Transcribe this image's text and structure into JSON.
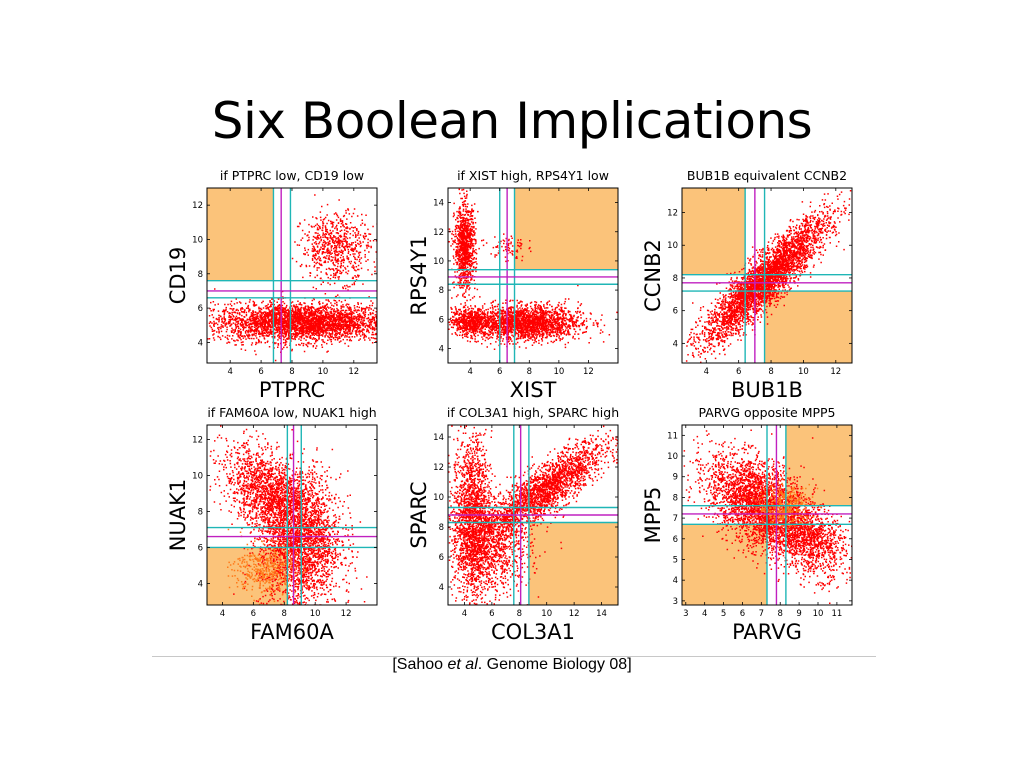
{
  "slide": {
    "title": "Six Boolean Implications",
    "citation": {
      "prefix": "[Sahoo ",
      "italic": "et al",
      "suffix": ".  Genome Biology 08]"
    }
  },
  "colors": {
    "points": "#ff0000",
    "points_dim": "#ff7a1a",
    "quadrant": "#fbc37a",
    "threshold_cyan": "#1fb6b6",
    "threshold_magenta": "#c020c0"
  },
  "chart_data": [
    {
      "type": "scatter",
      "title": "if PTPRC low, CD19 low",
      "xlabel": "PTPRC",
      "ylabel": "CD19",
      "xlim": [
        2.5,
        13.5
      ],
      "ylim": [
        2.8,
        13.0
      ],
      "xticks": [
        4,
        6,
        8,
        10,
        12
      ],
      "yticks": [
        4,
        6,
        8,
        10,
        12
      ],
      "vthresholds": [
        6.8,
        7.3,
        7.9
      ],
      "hthresholds": [
        6.6,
        7.0,
        7.6
      ],
      "highlight_quadrants": [
        {
          "x": [
            2.5,
            6.8
          ],
          "y": [
            7.6,
            13.0
          ]
        }
      ],
      "clusters": [
        {
          "center": [
            8.5,
            5.2
          ],
          "spread": [
            2.8,
            0.55
          ],
          "count": 3400,
          "corr": 0
        },
        {
          "center": [
            10.8,
            9.6
          ],
          "spread": [
            1.1,
            1.0
          ],
          "count": 700,
          "corr": 0
        }
      ]
    },
    {
      "type": "scatter",
      "title": "if XIST high, RPS4Y1 low",
      "xlabel": "XIST",
      "ylabel": "RPS4Y1",
      "xlim": [
        2.5,
        14.0
      ],
      "ylim": [
        3.0,
        15.0
      ],
      "xticks": [
        4,
        6,
        8,
        10,
        12
      ],
      "yticks": [
        4,
        6,
        8,
        10,
        12,
        14
      ],
      "vthresholds": [
        6.0,
        6.5,
        7.0
      ],
      "hthresholds": [
        8.4,
        8.9,
        9.4
      ],
      "highlight_quadrants": [
        {
          "x": [
            7.0,
            14.0
          ],
          "y": [
            9.4,
            15.0
          ]
        }
      ],
      "clusters": [
        {
          "center": [
            3.6,
            11.0
          ],
          "spread": [
            0.35,
            1.4
          ],
          "count": 1000,
          "corr": 0
        },
        {
          "center": [
            7.6,
            5.8
          ],
          "spread": [
            1.9,
            0.6
          ],
          "count": 2200,
          "corr": 0
        },
        {
          "center": [
            3.9,
            5.9
          ],
          "spread": [
            0.6,
            0.45
          ],
          "count": 500,
          "corr": 0
        },
        {
          "center": [
            6.5,
            11.0
          ],
          "spread": [
            0.6,
            0.5
          ],
          "count": 80,
          "corr": 0
        }
      ]
    },
    {
      "type": "scatter",
      "title": "BUB1B equivalent CCNB2",
      "xlabel": "BUB1B",
      "ylabel": "CCNB2",
      "xlim": [
        2.5,
        13.0
      ],
      "ylim": [
        2.8,
        13.5
      ],
      "xticks": [
        4,
        6,
        8,
        10,
        12
      ],
      "yticks": [
        4,
        6,
        8,
        10,
        12
      ],
      "vthresholds": [
        6.4,
        7.0,
        7.6
      ],
      "hthresholds": [
        7.2,
        7.7,
        8.2
      ],
      "highlight_quadrants": [
        {
          "x": [
            2.5,
            6.4
          ],
          "y": [
            8.2,
            13.5
          ]
        },
        {
          "x": [
            7.6,
            13.0
          ],
          "y": [
            2.8,
            7.2
          ]
        }
      ],
      "clusters": [
        {
          "center": [
            7.6,
            7.9
          ],
          "spread": [
            1.9,
            1.9
          ],
          "count": 3800,
          "corr": 0.9
        }
      ]
    },
    {
      "type": "scatter",
      "title": "if FAM60A low, NUAK1 high",
      "xlabel": "FAM60A",
      "ylabel": "NUAK1",
      "xlim": [
        3.0,
        14.0
      ],
      "ylim": [
        2.8,
        12.8
      ],
      "xticks": [
        4,
        6,
        8,
        10,
        12
      ],
      "yticks": [
        4,
        6,
        8,
        10,
        12
      ],
      "vthresholds": [
        8.2,
        8.6,
        9.1
      ],
      "hthresholds": [
        6.0,
        6.6,
        7.1
      ],
      "highlight_quadrants": [
        {
          "x": [
            3.0,
            8.2
          ],
          "y": [
            2.8,
            6.0
          ]
        }
      ],
      "clusters": [
        {
          "center": [
            9.0,
            6.3
          ],
          "spread": [
            1.3,
            1.9
          ],
          "count": 2600,
          "corr": 0
        },
        {
          "center": [
            7.0,
            9.0
          ],
          "spread": [
            1.5,
            1.3
          ],
          "count": 1600,
          "corr": -0.5
        },
        {
          "center": [
            6.7,
            4.8
          ],
          "spread": [
            1.0,
            0.7
          ],
          "count": 400,
          "corr": 0,
          "dim": true
        }
      ]
    },
    {
      "type": "scatter",
      "title": "if COL3A1 high, SPARC high",
      "xlabel": "COL3A1",
      "ylabel": "SPARC",
      "xlim": [
        2.8,
        15.2
      ],
      "ylim": [
        2.8,
        14.8
      ],
      "xticks": [
        4,
        6,
        8,
        10,
        12,
        14
      ],
      "yticks": [
        4,
        6,
        8,
        10,
        12,
        14
      ],
      "vthresholds": [
        7.6,
        8.1,
        8.7
      ],
      "hthresholds": [
        8.3,
        8.8,
        9.3
      ],
      "highlight_quadrants": [
        {
          "x": [
            8.7,
            15.2
          ],
          "y": [
            2.8,
            8.3
          ]
        }
      ],
      "clusters": [
        {
          "center": [
            4.5,
            8.8
          ],
          "spread": [
            0.7,
            2.6
          ],
          "count": 1700,
          "corr": 0
        },
        {
          "center": [
            9.8,
            10.5
          ],
          "spread": [
            2.2,
            1.6
          ],
          "count": 2200,
          "corr": 0.85
        },
        {
          "center": [
            6.0,
            6.5
          ],
          "spread": [
            1.4,
            1.5
          ],
          "count": 900,
          "corr": 0
        }
      ]
    },
    {
      "type": "scatter",
      "title": "PARVG opposite MPP5",
      "xlabel": "PARVG",
      "ylabel": "MPP5",
      "xlim": [
        2.8,
        11.8
      ],
      "ylim": [
        2.8,
        11.5
      ],
      "xticks": [
        3,
        4,
        5,
        6,
        7,
        8,
        9,
        10,
        11
      ],
      "yticks": [
        3,
        4,
        5,
        6,
        7,
        8,
        9,
        10,
        11
      ],
      "vthresholds": [
        7.3,
        7.8,
        8.3
      ],
      "hthresholds": [
        6.7,
        7.2,
        7.6
      ],
      "highlight_quadrants": [
        {
          "x": [
            2.8,
            7.3
          ],
          "y": [
            2.8,
            6.7
          ]
        },
        {
          "x": [
            8.3,
            11.8
          ],
          "y": [
            7.6,
            11.5
          ]
        }
      ],
      "clusters": [
        {
          "center": [
            7.0,
            7.6
          ],
          "spread": [
            1.4,
            1.2
          ],
          "count": 3200,
          "corr": -0.5
        },
        {
          "center": [
            9.6,
            6.0
          ],
          "spread": [
            0.9,
            0.9
          ],
          "count": 900,
          "corr": -0.3
        },
        {
          "center": [
            8.2,
            7.6
          ],
          "spread": [
            0.7,
            0.5
          ],
          "count": 400,
          "corr": 0,
          "dim": true
        }
      ]
    }
  ]
}
